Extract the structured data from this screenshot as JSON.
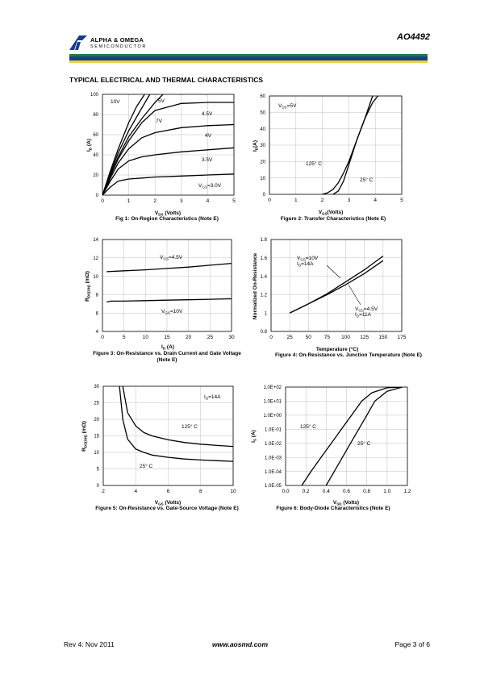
{
  "header": {
    "company_line1": "ALPHA & OMEGA",
    "company_line2": "SEMICONDUCTOR",
    "part_number": "AO4492",
    "colors": {
      "green": "#1e7d3c",
      "blue": "#1b3c8c",
      "yellow": "#e8d23a"
    }
  },
  "section_title": "TYPICAL ELECTRICAL AND THERMAL CHARACTERISTICS",
  "figures": [
    {
      "caption": "Fig 1: On-Region Characteristics (Note E)",
      "x_label": "V",
      "x_label_sub": "DS",
      "x_label_tail": " (Volts)",
      "y_label": "I",
      "y_label_sub": "D",
      "y_label_tail": " (A)",
      "annotations": [
        "10V",
        "5V",
        "7V",
        "4.5V",
        "4V",
        "3.5V",
        "V",
        "GS",
        "=3.0V"
      ]
    },
    {
      "caption": "Figure 2: Transfer Characteristics (Note E)",
      "x_label": "V",
      "x_label_sub": "GS",
      "x_label_tail": "(Volts)",
      "y_label": "I",
      "y_label_sub": "D",
      "y_label_tail": "(A)",
      "annotations": [
        "V",
        "DS",
        "=5V",
        "125° C",
        "25° C"
      ]
    },
    {
      "caption": "Figure 3: On-Resistance vs. Drain Current and Gate Voltage (Note E)",
      "x_label": "I",
      "x_label_sub": "D",
      "x_label_tail": " (A)",
      "y_label": "R",
      "y_label_sub": "DS(ON)",
      "y_label_tail": " (mΩ)",
      "annotations": [
        "V",
        "GS",
        "=4.5V",
        "V",
        "GS",
        "=10V"
      ]
    },
    {
      "caption": "Figure 4: On-Resistance vs. Junction Temperature (Note E)",
      "x_label": "Temperature (°C)",
      "y_label": "Normalized On-Resistance",
      "annotations": [
        "V",
        "GS",
        "=10V",
        "I",
        "D",
        "=14A",
        "V",
        "GS",
        "=4.5V",
        "I",
        "D",
        "=11A"
      ]
    },
    {
      "caption": "Figure 5: On-Resistance vs. Gate-Source Voltage (Note E)",
      "x_label": "V",
      "x_label_sub": "GS",
      "x_label_tail": " (Volts)",
      "y_label": "R",
      "y_label_sub": "DS(ON)",
      "y_label_tail": " (mΩ)",
      "annotations": [
        "I",
        "D",
        "=14A",
        "125° C",
        "25° C"
      ]
    },
    {
      "caption": "Figure 6: Body-Diode Characteristics (Note E)",
      "x_label": "V",
      "x_label_sub": "SD",
      "x_label_tail": " (Volts)",
      "y_label": "I",
      "y_label_sub": "S",
      "y_label_tail": " (A)",
      "annotations": [
        "125° C",
        "25° C"
      ]
    }
  ],
  "chart_data": [
    {
      "type": "line",
      "xlim": [
        0,
        5
      ],
      "ylim": [
        0,
        100
      ],
      "x_ticks": [
        "0",
        "1",
        "2",
        "3",
        "4",
        "5"
      ],
      "y_ticks": [
        "0",
        "20",
        "40",
        "60",
        "80",
        "100"
      ],
      "series": [
        {
          "name": "10V",
          "x": [
            0,
            0.3,
            0.6,
            1.0,
            1.3,
            1.6
          ],
          "y": [
            0,
            24,
            46,
            72,
            88,
            100
          ]
        },
        {
          "name": "7V",
          "x": [
            0,
            0.3,
            0.6,
            1.0,
            1.4,
            1.8
          ],
          "y": [
            0,
            22,
            42,
            64,
            82,
            100
          ]
        },
        {
          "name": "5V",
          "x": [
            0,
            0.3,
            0.6,
            1.0,
            1.5,
            2.0,
            2.3
          ],
          "y": [
            0,
            20,
            38,
            58,
            76,
            92,
            100
          ]
        },
        {
          "name": "4.5V",
          "x": [
            0,
            0.3,
            0.6,
            1.0,
            1.5,
            2.0,
            3.0,
            4.0,
            5.0
          ],
          "y": [
            0,
            19,
            36,
            54,
            72,
            84,
            91,
            92,
            92
          ]
        },
        {
          "name": "4V",
          "x": [
            0,
            0.3,
            0.6,
            1.0,
            1.5,
            2.0,
            3.0,
            4.0,
            5.0
          ],
          "y": [
            0,
            17,
            32,
            46,
            57,
            62,
            67,
            69,
            70
          ]
        },
        {
          "name": "3.5V",
          "x": [
            0,
            0.3,
            0.6,
            1.0,
            1.5,
            2.0,
            3.0,
            4.0,
            5.0
          ],
          "y": [
            0,
            14,
            26,
            34,
            38,
            40,
            43,
            45,
            47
          ]
        },
        {
          "name": "3.0V",
          "x": [
            0,
            0.3,
            0.6,
            1.0,
            1.5,
            2.0,
            3.0,
            4.0,
            5.0
          ],
          "y": [
            0,
            8,
            14,
            16,
            17,
            18,
            19,
            20,
            21
          ]
        }
      ]
    },
    {
      "type": "line",
      "xlim": [
        0,
        5
      ],
      "ylim": [
        0,
        60
      ],
      "x_ticks": [
        "0",
        "1",
        "2",
        "3",
        "4",
        "5"
      ],
      "y_ticks": [
        "0",
        "10",
        "20",
        "30",
        "40",
        "50",
        "60"
      ],
      "series": [
        {
          "name": "125° C",
          "x": [
            2.0,
            2.2,
            2.4,
            2.6,
            2.8,
            3.0,
            3.3,
            3.6,
            3.9
          ],
          "y": [
            0,
            1,
            3,
            7,
            13,
            20,
            33,
            46,
            60
          ]
        },
        {
          "name": "25° C",
          "x": [
            2.4,
            2.6,
            2.8,
            3.0,
            3.3,
            3.6,
            3.9,
            4.1
          ],
          "y": [
            0,
            2,
            8,
            18,
            33,
            46,
            56,
            60
          ]
        }
      ]
    },
    {
      "type": "line",
      "xlim": [
        0,
        30
      ],
      "ylim": [
        4,
        14
      ],
      "x_ticks": [
        "0",
        "5",
        "10",
        "15",
        "20",
        "25",
        "30"
      ],
      "y_ticks": [
        "4",
        "6",
        "8",
        "10",
        "12",
        "14"
      ],
      "series": [
        {
          "name": "VGS=4.5V",
          "x": [
            1,
            5,
            10,
            15,
            20,
            25,
            30
          ],
          "y": [
            10.5,
            10.6,
            10.7,
            10.85,
            11.0,
            11.2,
            11.4
          ]
        },
        {
          "name": "VGS=10V",
          "x": [
            1,
            2,
            5,
            10,
            15,
            20,
            25,
            30
          ],
          "y": [
            7.2,
            7.3,
            7.3,
            7.35,
            7.4,
            7.45,
            7.5,
            7.55
          ]
        }
      ]
    },
    {
      "type": "line",
      "xlim": [
        0,
        175
      ],
      "ylim": [
        0.8,
        1.8
      ],
      "x_ticks": [
        "0",
        "25",
        "50",
        "75",
        "100",
        "125",
        "150",
        "175"
      ],
      "y_ticks": [
        "0.8",
        "1",
        "1.2",
        "1.4",
        "1.6",
        "1.8"
      ],
      "series": [
        {
          "name": "VGS=10V, ID=14A",
          "x": [
            25,
            50,
            75,
            100,
            125,
            150
          ],
          "y": [
            1.0,
            1.1,
            1.21,
            1.34,
            1.47,
            1.62
          ]
        },
        {
          "name": "VGS=4.5V, ID=11A",
          "x": [
            25,
            50,
            75,
            100,
            125,
            150
          ],
          "y": [
            1.0,
            1.1,
            1.2,
            1.31,
            1.43,
            1.57
          ]
        }
      ]
    },
    {
      "type": "line",
      "xlim": [
        2,
        10
      ],
      "ylim": [
        0,
        30
      ],
      "x_ticks": [
        "2",
        "4",
        "6",
        "8",
        "10"
      ],
      "y_ticks": [
        "0",
        "5",
        "10",
        "15",
        "20",
        "25",
        "30"
      ],
      "series": [
        {
          "name": "125° C",
          "x": [
            3.2,
            3.5,
            4,
            4.5,
            5,
            6,
            7,
            8,
            9,
            10
          ],
          "y": [
            30,
            22,
            18,
            16,
            15,
            13.8,
            13,
            12.5,
            12.1,
            11.8
          ]
        },
        {
          "name": "25° C",
          "x": [
            3.0,
            3.2,
            3.5,
            4,
            4.5,
            5,
            6,
            7,
            8,
            9,
            10
          ],
          "y": [
            30,
            20,
            14,
            11,
            10,
            9.2,
            8.5,
            8.0,
            7.7,
            7.5,
            7.3
          ]
        }
      ]
    },
    {
      "type": "line",
      "xlim": [
        0,
        1.2
      ],
      "ylim": [
        -5,
        2
      ],
      "y_scale": "log",
      "x_ticks": [
        "0.0",
        "0.2",
        "0.4",
        "0.6",
        "0.8",
        "1.0",
        "1.2"
      ],
      "y_ticks": [
        "1.0E-05",
        "1.0E-04",
        "1.0E-03",
        "1.0E-02",
        "1.0E-01",
        "1.0E+00",
        "1.0E+01",
        "1.0E+02"
      ],
      "series": [
        {
          "name": "125° C",
          "x": [
            0.16,
            0.25,
            0.35,
            0.45,
            0.55,
            0.65,
            0.75,
            0.85,
            1.0,
            1.15
          ],
          "y": [
            -5,
            -4,
            -3,
            -2,
            -1,
            0,
            1,
            1.6,
            1.95,
            2
          ]
        },
        {
          "name": "25° C",
          "x": [
            0.4,
            0.48,
            0.56,
            0.64,
            0.72,
            0.8,
            0.88,
            1.0,
            1.15
          ],
          "y": [
            -5,
            -4,
            -3,
            -2,
            -1,
            0,
            1,
            1.7,
            2
          ]
        }
      ]
    }
  ],
  "footer": {
    "revision": "Rev 4: Nov 2011",
    "website": "www.aosmd.com",
    "page": "Page 3 of 6"
  }
}
